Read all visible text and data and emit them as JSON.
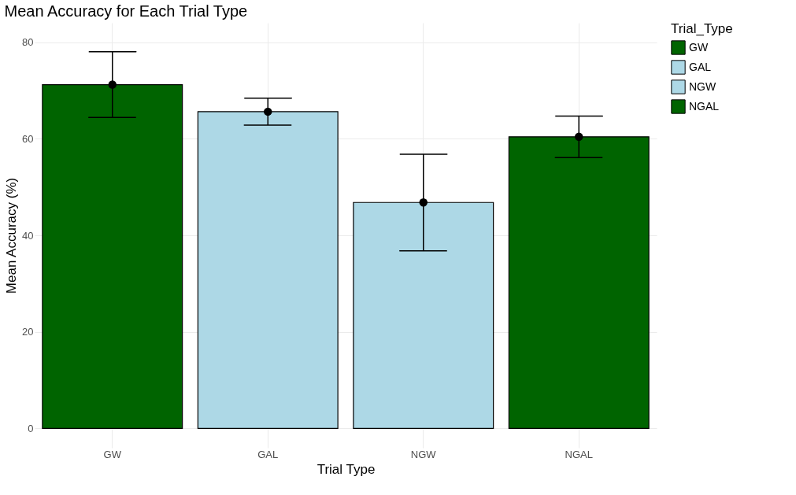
{
  "chart_data": {
    "type": "bar",
    "title": "Mean Accuracy for Each Trial Type",
    "xlabel": "Trial Type",
    "ylabel": "Mean Accuracy (%)",
    "legend_title": "Trial_Type",
    "categories": [
      "GW",
      "GAL",
      "NGW",
      "NGAL"
    ],
    "series": [
      {
        "name": "GW",
        "color": "#006400",
        "values": [
          71.2,
          null,
          null,
          null
        ]
      },
      {
        "name": "GAL",
        "color": "#add8e6",
        "values": [
          null,
          65.6,
          null,
          null
        ]
      },
      {
        "name": "NGW",
        "color": "#add8e6",
        "values": [
          null,
          null,
          46.8,
          null
        ]
      },
      {
        "name": "NGAL",
        "color": "#006400",
        "values": [
          null,
          null,
          null,
          60.4
        ]
      },
      {
        "type": "scatter",
        "color": "#000000",
        "x": [
          "GW",
          "GAL",
          "NGW",
          "NGAL"
        ],
        "values": [
          71.2,
          65.6,
          46.8,
          60.4
        ],
        "errors": [
          6.8,
          2.8,
          10.0,
          4.3
        ]
      }
    ],
    "ylim": [
      -4,
      84
    ],
    "yticks": [
      0,
      20,
      40,
      60,
      80
    ],
    "grid": true,
    "legend": "right",
    "marker": "circle"
  }
}
